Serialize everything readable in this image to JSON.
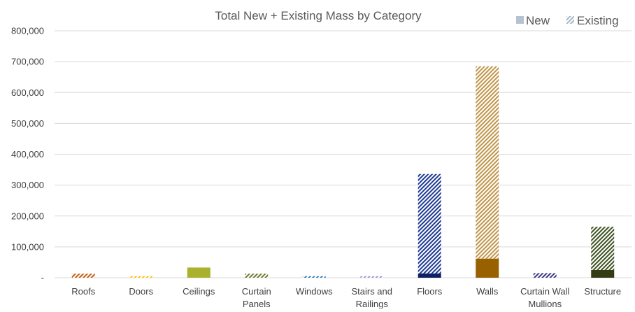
{
  "chart_data": {
    "type": "bar",
    "stacked": true,
    "title": "Total New + Existing Mass by Category",
    "xlabel": "",
    "ylabel": "",
    "ylim": [
      0,
      800000
    ],
    "y_ticks": [
      "800,000",
      "700,000",
      "600,000",
      "500,000",
      "400,000",
      "300,000",
      "200,000",
      "100,000",
      "-"
    ],
    "y_tick_values": [
      800000,
      700000,
      600000,
      500000,
      400000,
      300000,
      200000,
      100000,
      0
    ],
    "grid": true,
    "legend_position": "top-right",
    "categories": [
      "Roofs",
      "Doors",
      "Ceilings",
      "Curtain Panels",
      "Windows",
      "Stairs and Railings",
      "Floors",
      "Walls",
      "Curtain Wall Mullions",
      "Structure"
    ],
    "category_lines": [
      [
        "Roofs"
      ],
      [
        "Doors"
      ],
      [
        "Ceilings"
      ],
      [
        "Curtain",
        "Panels"
      ],
      [
        "Windows"
      ],
      [
        "Stairs and",
        "Railings"
      ],
      [
        "Floors"
      ],
      [
        "Walls"
      ],
      [
        "Curtain Wall",
        "Mullions"
      ],
      [
        "Structure"
      ]
    ],
    "series": [
      {
        "name": "New",
        "values": [
          0,
          0,
          33000,
          0,
          0,
          0,
          14000,
          62000,
          0,
          25000
        ]
      },
      {
        "name": "Existing",
        "values": [
          13000,
          5000,
          0,
          13000,
          5000,
          5000,
          322000,
          623000,
          15000,
          140000
        ]
      }
    ],
    "colors": {
      "new_solid": [
        "#C55A11",
        "#FFC000",
        "#A9B12E",
        "#6B7A2A",
        "#2E75B6",
        "#9E8FCF",
        "#102163",
        "#996000",
        "#302A6E",
        "#333C12"
      ],
      "existing_hatch": [
        "#C55A11",
        "#FFC000",
        "#A9B12E",
        "#6B7A2A",
        "#2E75B6",
        "#9E8FCF",
        "#1F3A93",
        "#C0954A",
        "#3B3585",
        "#3E5220"
      ],
      "legend_new": "#B4C3CF",
      "legend_existing": "#A6B6C2"
    }
  }
}
